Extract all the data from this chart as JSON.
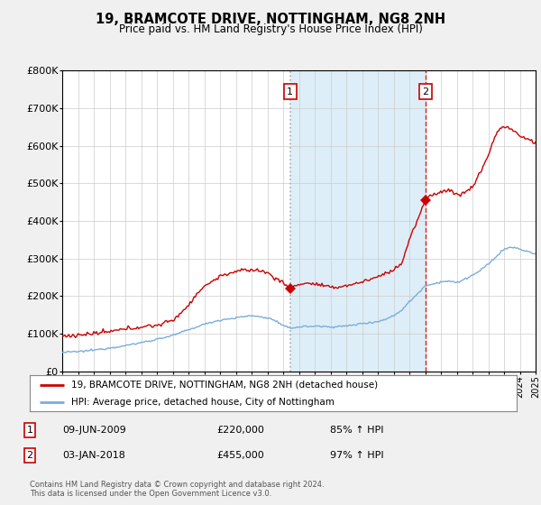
{
  "title": "19, BRAMCOTE DRIVE, NOTTINGHAM, NG8 2NH",
  "subtitle": "Price paid vs. HM Land Registry's House Price Index (HPI)",
  "legend_line1": "19, BRAMCOTE DRIVE, NOTTINGHAM, NG8 2NH (detached house)",
  "legend_line2": "HPI: Average price, detached house, City of Nottingham",
  "footnote1": "Contains HM Land Registry data © Crown copyright and database right 2024.",
  "footnote2": "This data is licensed under the Open Government Licence v3.0.",
  "transaction1_date": "09-JUN-2009",
  "transaction1_price": "£220,000",
  "transaction1_hpi": "85% ↑ HPI",
  "transaction2_date": "03-JAN-2018",
  "transaction2_price": "£455,000",
  "transaction2_hpi": "97% ↑ HPI",
  "transaction1_year": 2009.44,
  "transaction1_value": 220000,
  "transaction2_year": 2018.01,
  "transaction2_value": 455000,
  "vline1_x": 2009.44,
  "vline2_x": 2018.01,
  "red_color": "#cc0000",
  "blue_color": "#7aaddb",
  "shaded_color": "#ddeef8",
  "grid_color": "#cccccc",
  "background_color": "#f0f0f0",
  "plot_bg_color": "#ffffff",
  "ylim": [
    0,
    800000
  ],
  "xlim": [
    1995,
    2025
  ],
  "yticks": [
    0,
    100000,
    200000,
    300000,
    400000,
    500000,
    600000,
    700000,
    800000
  ],
  "ytick_labels": [
    "£0",
    "£100K",
    "£200K",
    "£300K",
    "£400K",
    "£500K",
    "£600K",
    "£700K",
    "£800K"
  ],
  "xticks": [
    1995,
    1996,
    1997,
    1998,
    1999,
    2000,
    2001,
    2002,
    2003,
    2004,
    2005,
    2006,
    2007,
    2008,
    2009,
    2010,
    2011,
    2012,
    2013,
    2014,
    2015,
    2016,
    2017,
    2018,
    2019,
    2020,
    2021,
    2022,
    2023,
    2024,
    2025
  ],
  "hpi_key_x": [
    1995,
    1996,
    1997,
    1998,
    1999,
    2000,
    2001,
    2002,
    2003,
    2004,
    2005,
    2006,
    2007,
    2008,
    2008.5,
    2009.0,
    2009.5,
    2010,
    2011,
    2012,
    2013,
    2014,
    2015,
    2015.5,
    2016,
    2016.5,
    2017,
    2017.5,
    2018,
    2018.5,
    2019,
    2019.5,
    2020,
    2020.5,
    2021,
    2021.5,
    2022,
    2022.5,
    2023,
    2023.5,
    2024,
    2024.5,
    2025
  ],
  "hpi_key_y": [
    50000,
    52000,
    56000,
    62000,
    68000,
    76000,
    85000,
    95000,
    110000,
    125000,
    136000,
    142000,
    148000,
    142000,
    135000,
    120000,
    115000,
    118000,
    120000,
    118000,
    120000,
    127000,
    132000,
    138000,
    148000,
    162000,
    185000,
    205000,
    228000,
    232000,
    238000,
    240000,
    235000,
    245000,
    255000,
    268000,
    285000,
    305000,
    325000,
    330000,
    325000,
    318000,
    312000
  ],
  "red_key_x": [
    1995,
    1996,
    1997,
    1998,
    1999,
    2000,
    2001,
    2002,
    2003,
    2003.5,
    2004,
    2004.5,
    2005,
    2005.5,
    2006,
    2006.5,
    2007,
    2007.5,
    2008,
    2008.5,
    2009.0,
    2009.44,
    2009.8,
    2010,
    2010.5,
    2011,
    2011.5,
    2012,
    2012.5,
    2013,
    2013.5,
    2014,
    2014.5,
    2015,
    2015.5,
    2016,
    2016.2,
    2016.5,
    2017,
    2017.5,
    2018.01,
    2018.3,
    2018.6,
    2019,
    2019.5,
    2020,
    2020.5,
    2021,
    2021.5,
    2022,
    2022.3,
    2022.6,
    2022.9,
    2023,
    2023.3,
    2023.5,
    2023.7,
    2024,
    2024.5,
    2025
  ],
  "red_key_y": [
    93000,
    96000,
    100000,
    105000,
    112000,
    118000,
    122000,
    135000,
    175000,
    205000,
    225000,
    240000,
    252000,
    260000,
    265000,
    268000,
    270000,
    268000,
    262000,
    248000,
    235000,
    220000,
    228000,
    232000,
    234000,
    232000,
    228000,
    222000,
    224000,
    228000,
    232000,
    238000,
    244000,
    252000,
    260000,
    270000,
    278000,
    285000,
    350000,
    400000,
    455000,
    468000,
    472000,
    478000,
    482000,
    470000,
    475000,
    490000,
    530000,
    575000,
    610000,
    640000,
    650000,
    652000,
    648000,
    642000,
    638000,
    625000,
    618000,
    608000
  ]
}
